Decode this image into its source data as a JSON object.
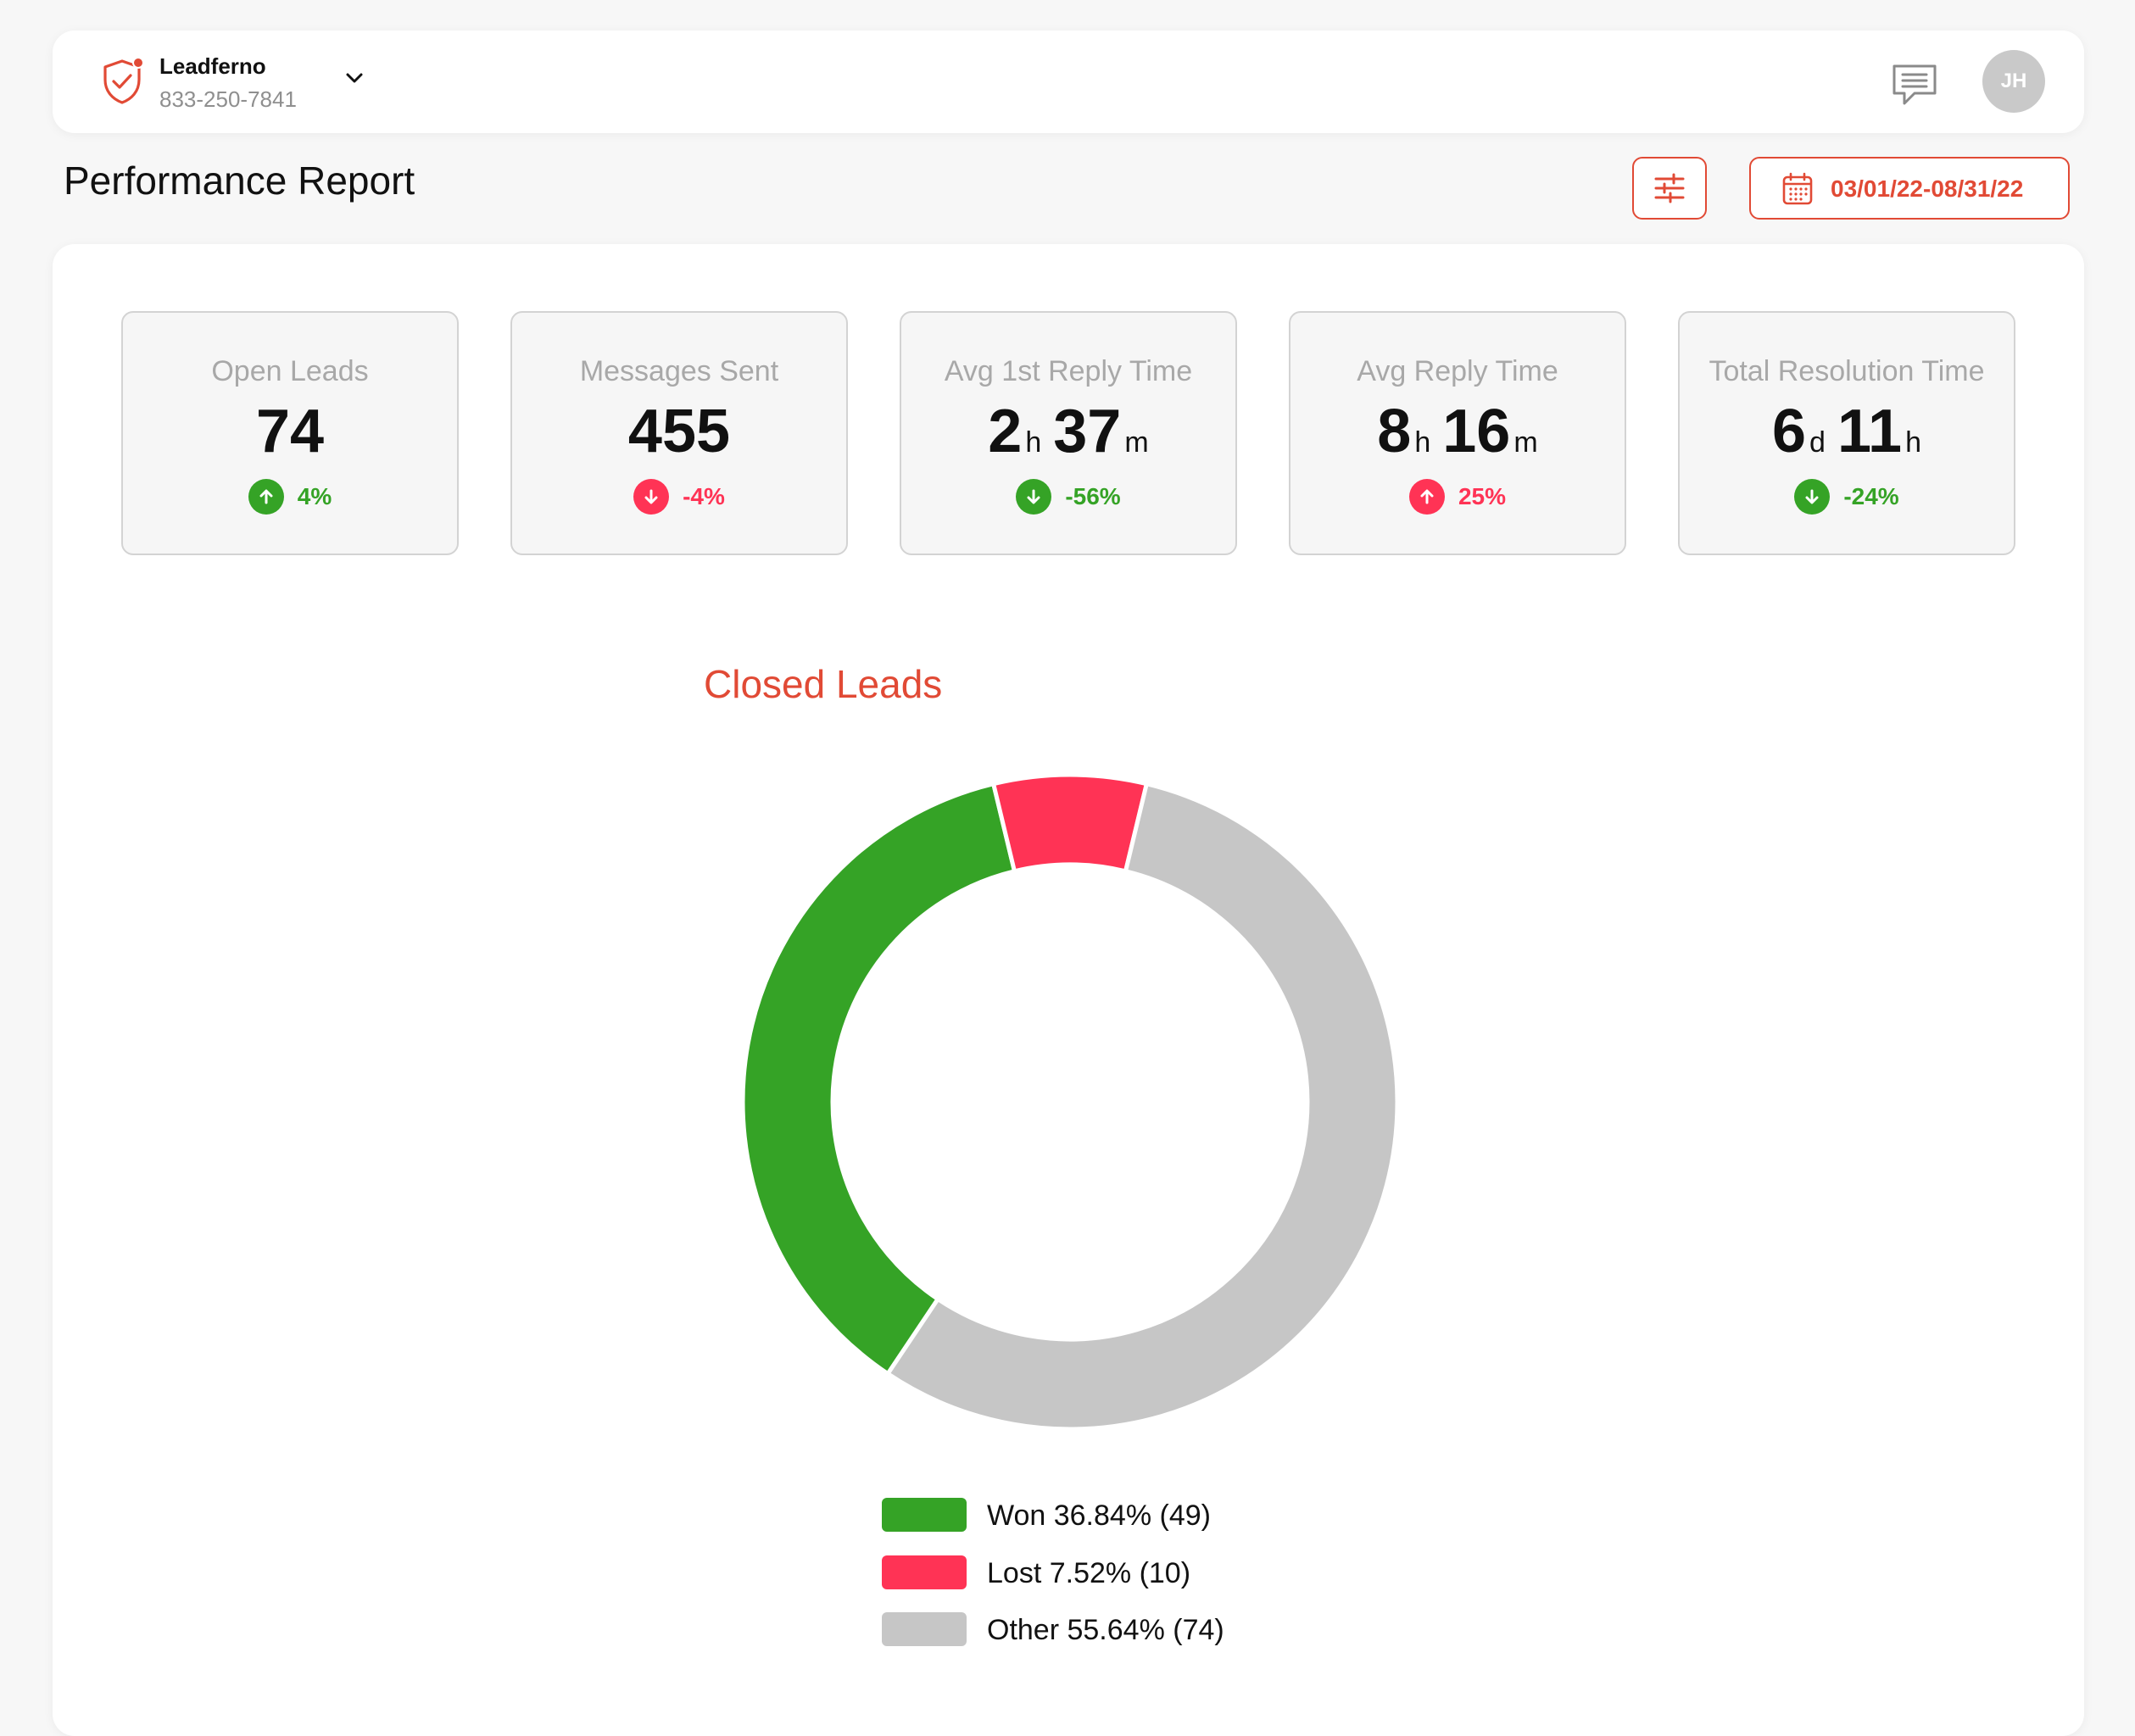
{
  "header": {
    "brand_name": "Leadferno",
    "brand_phone": "833-250-7841",
    "avatar_initials": "JH"
  },
  "page": {
    "title": "Performance Report",
    "date_range": "03/01/22-08/31/22"
  },
  "colors": {
    "accent": "#e14a35",
    "positive": "#35a326",
    "negative": "#ff3355",
    "neutral": "#c6c6c6"
  },
  "kpis": [
    {
      "label": "Open Leads",
      "value": "74",
      "change": "4%",
      "direction": "up",
      "status": "good"
    },
    {
      "label": "Messages Sent",
      "value": "455",
      "change": "-4%",
      "direction": "down",
      "status": "bad"
    },
    {
      "label": "Avg 1st Reply Time",
      "v1": "2",
      "u1": "h",
      "v2": "37",
      "u2": "m",
      "change": "-56%",
      "direction": "down",
      "status": "good"
    },
    {
      "label": "Avg Reply Time",
      "v1": "8",
      "u1": "h",
      "v2": "16",
      "u2": "m",
      "change": "25%",
      "direction": "up",
      "status": "bad"
    },
    {
      "label": "Total Resolution Time",
      "v1": "6",
      "u1": "d",
      "v2": "11",
      "u2": "h",
      "change": "-24%",
      "direction": "down",
      "status": "good"
    }
  ],
  "chart_data": {
    "type": "pie",
    "title": "Closed Leads",
    "categories": [
      "Won",
      "Lost",
      "Other"
    ],
    "values": [
      49,
      10,
      74
    ],
    "percentages": [
      36.84,
      7.52,
      55.64
    ],
    "colors": [
      "#35a326",
      "#ff3355",
      "#c6c6c6"
    ],
    "legend": [
      "Won 36.84% (49)",
      "Lost 7.52% (10)",
      "Other 55.64% (74)"
    ],
    "legend_position": "bottom"
  }
}
